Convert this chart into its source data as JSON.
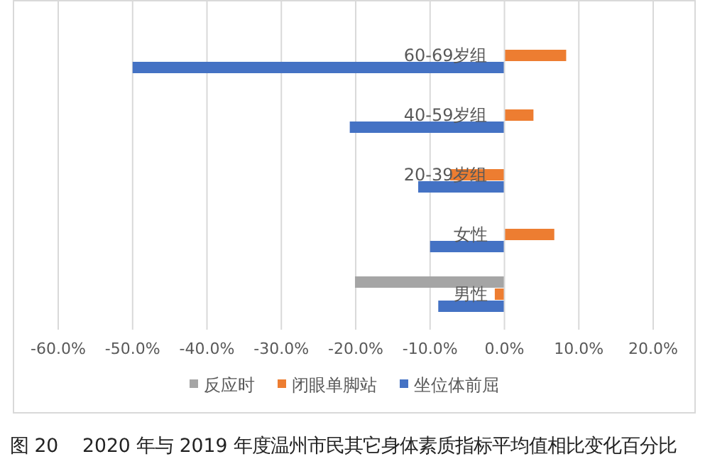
{
  "chart_data": {
    "type": "bar",
    "orientation": "horizontal",
    "categories": [
      "60-69岁组",
      "40-59岁组",
      "20-39岁组",
      "女性",
      "男性"
    ],
    "series": [
      {
        "name": "反应时",
        "color": "#a5a5a5",
        "values": [
          null,
          null,
          null,
          null,
          -20.1
        ]
      },
      {
        "name": "闭眼单脚站",
        "color": "#ed7d31",
        "values": [
          8.3,
          3.9,
          -7.3,
          6.7,
          -1.3
        ]
      },
      {
        "name": "坐位体前屈",
        "color": "#4472c4",
        "values": [
          -50.0,
          -20.8,
          -11.6,
          -10.0,
          -8.9
        ]
      }
    ],
    "xlim": [
      -60,
      20
    ],
    "xticks": [
      {
        "value": -60,
        "label": "-60.0%"
      },
      {
        "value": -50,
        "label": "-50.0%"
      },
      {
        "value": -40,
        "label": "-40.0%"
      },
      {
        "value": -30,
        "label": "-30.0%"
      },
      {
        "value": -20,
        "label": "-20.0%"
      },
      {
        "value": -10,
        "label": "-10.0%"
      },
      {
        "value": 0,
        "label": "0.0%"
      },
      {
        "value": 10,
        "label": "10.0%"
      },
      {
        "value": 20,
        "label": "20.0%"
      }
    ],
    "grid": "x",
    "legend": "bottom",
    "annotations": [
      "图 20    2020 年与 2019 年度温州市民其它身体素质指标平均值相比变化百分比"
    ]
  }
}
